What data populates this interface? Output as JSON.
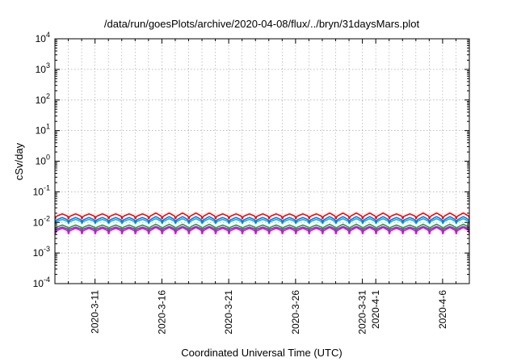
{
  "chart_data": {
    "type": "line",
    "title": "/data/run/goesPlots/archive/2020-04-08/flux/../bryn/31daysMars.plot",
    "xlabel": "Coordinated Universal Time (UTC)",
    "ylabel": "cSv/day",
    "y_scale": "log",
    "ylim": [
      0.0001,
      10000
    ],
    "xlim": [
      "2020-03-08",
      "2020-04-08"
    ],
    "grid": true,
    "legend": "none",
    "y_ticks": [
      {
        "base": "10",
        "exp": "-4",
        "value": 0.0001
      },
      {
        "base": "10",
        "exp": "-3",
        "value": 0.001
      },
      {
        "base": "10",
        "exp": "-2",
        "value": 0.01
      },
      {
        "base": "10",
        "exp": "-1",
        "value": 0.1
      },
      {
        "base": "10",
        "exp": "0",
        "value": 1
      },
      {
        "base": "10",
        "exp": "1",
        "value": 10
      },
      {
        "base": "10",
        "exp": "2",
        "value": 100
      },
      {
        "base": "10",
        "exp": "3",
        "value": 1000
      },
      {
        "base": "10",
        "exp": "4",
        "value": 10000
      }
    ],
    "x_ticks": [
      {
        "label": "2020-3-11",
        "date": "2020-03-11"
      },
      {
        "label": "2020-3-16",
        "date": "2020-03-16"
      },
      {
        "label": "2020-3-21",
        "date": "2020-03-21"
      },
      {
        "label": "2020-3-26",
        "date": "2020-03-26"
      },
      {
        "label": "2020-3-31",
        "date": "2020-03-31"
      },
      {
        "label": "2020-4-1",
        "date": "2020-04-01"
      },
      {
        "label": "2020-4-6",
        "date": "2020-04-06"
      }
    ],
    "series": [
      {
        "color": "#ff0000",
        "base": 0.0155,
        "peak": 0.019,
        "dip": 0.0135
      },
      {
        "color": "#1f6fe0",
        "base": 0.0118,
        "peak": 0.0145,
        "dip": 0.0102
      },
      {
        "color": "#00b8d8",
        "base": 0.0105,
        "peak": 0.0125,
        "dip": 0.0093
      },
      {
        "color": "#2a9a3a",
        "base": 0.0068,
        "peak": 0.0082,
        "dip": 0.006
      },
      {
        "color": "#7a3fb0",
        "base": 0.006,
        "peak": 0.007,
        "dip": 0.0052
      },
      {
        "color": "#ee00ee",
        "base": 0.0052,
        "peak": 0.0064,
        "dip": 0.0043
      }
    ]
  }
}
